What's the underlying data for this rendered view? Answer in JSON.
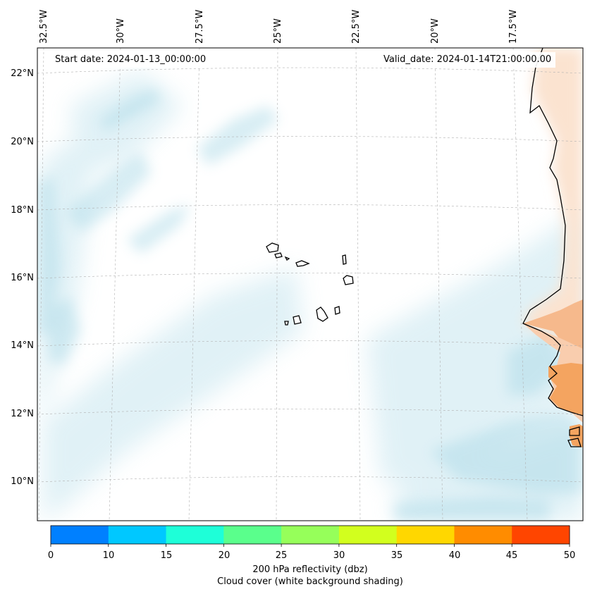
{
  "map": {
    "start_date": "Start date: 2024-01-13_00:00:00",
    "valid_date": "Valid_date: 2024-01-14T21:00:00.00",
    "lon_labels": [
      "32.5°W",
      "30°W",
      "27.5°W",
      "25°W",
      "22.5°W",
      "20°W",
      "17.5°W"
    ],
    "lat_labels": [
      "22°N",
      "20°N",
      "18°N",
      "16°N",
      "14°N",
      "12°N",
      "10°N"
    ],
    "land_color": "#f4a460",
    "cloud_color": "#a8d8e6"
  },
  "colorbar": {
    "ticks": [
      "0",
      "10",
      "15",
      "20",
      "25",
      "30",
      "35",
      "40",
      "45",
      "50"
    ],
    "colors": [
      "#0080ff",
      "#00c8ff",
      "#1effd8",
      "#5aff8c",
      "#96ff5a",
      "#d2ff1e",
      "#ffd700",
      "#ff8c00",
      "#ff4500"
    ],
    "label_line1": "200 hPa reflectivity (dbz)",
    "label_line2": "Cloud cover (white background shading)"
  }
}
